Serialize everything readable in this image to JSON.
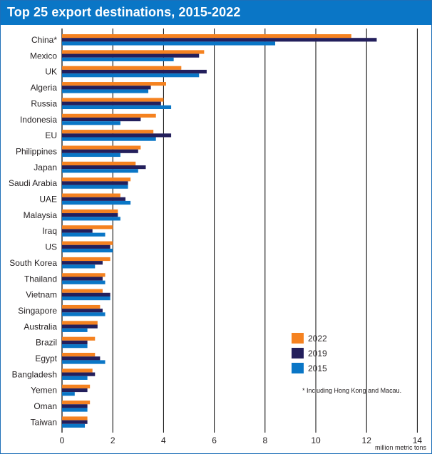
{
  "chart_data": {
    "type": "bar",
    "orientation": "horizontal",
    "title": "Top 25 export destinations, 2015-2022",
    "xlabel": "million metric tons",
    "ylabel": "",
    "xlim": [
      0,
      14
    ],
    "xticks": [
      0,
      2,
      4,
      6,
      8,
      10,
      12,
      14
    ],
    "grid": true,
    "legend_position": "bottom-right",
    "categories": [
      "China*",
      "Mexico",
      "UK",
      "Algeria",
      "Russia",
      "Indonesia",
      "EU",
      "Philippines",
      "Japan",
      "Saudi Arabia",
      "UAE",
      "Malaysia",
      "Iraq",
      "US",
      "South Korea",
      "Thailand",
      "Vietnam",
      "Singapore",
      "Australia",
      "Brazil",
      "Egypt",
      "Bangladesh",
      "Yemen",
      "Oman",
      "Taiwan"
    ],
    "series": [
      {
        "name": "2022",
        "color": "#f58220",
        "values": [
          11.4,
          5.6,
          4.7,
          4.1,
          4.0,
          3.7,
          3.6,
          3.1,
          2.9,
          2.7,
          2.3,
          2.2,
          2.0,
          2.0,
          1.9,
          1.7,
          1.6,
          1.5,
          1.4,
          1.3,
          1.3,
          1.2,
          1.1,
          1.1,
          1.0
        ]
      },
      {
        "name": "2019",
        "color": "#231f5c",
        "values": [
          12.4,
          5.4,
          5.7,
          3.5,
          3.9,
          3.1,
          4.3,
          3.0,
          3.3,
          2.6,
          2.5,
          2.2,
          1.2,
          1.9,
          1.6,
          1.6,
          1.9,
          1.6,
          1.4,
          1.0,
          1.5,
          1.3,
          1.0,
          1.0,
          1.0
        ]
      },
      {
        "name": "2015",
        "color": "#0a76c6",
        "values": [
          8.4,
          4.4,
          5.4,
          3.4,
          4.3,
          2.3,
          3.7,
          2.3,
          3.0,
          2.6,
          2.7,
          2.3,
          1.7,
          2.0,
          1.3,
          1.7,
          1.9,
          1.7,
          1.0,
          1.0,
          1.7,
          1.0,
          0.5,
          1.0,
          0.9
        ]
      }
    ],
    "annotation": "*  Including Hong Kong and Macau."
  }
}
